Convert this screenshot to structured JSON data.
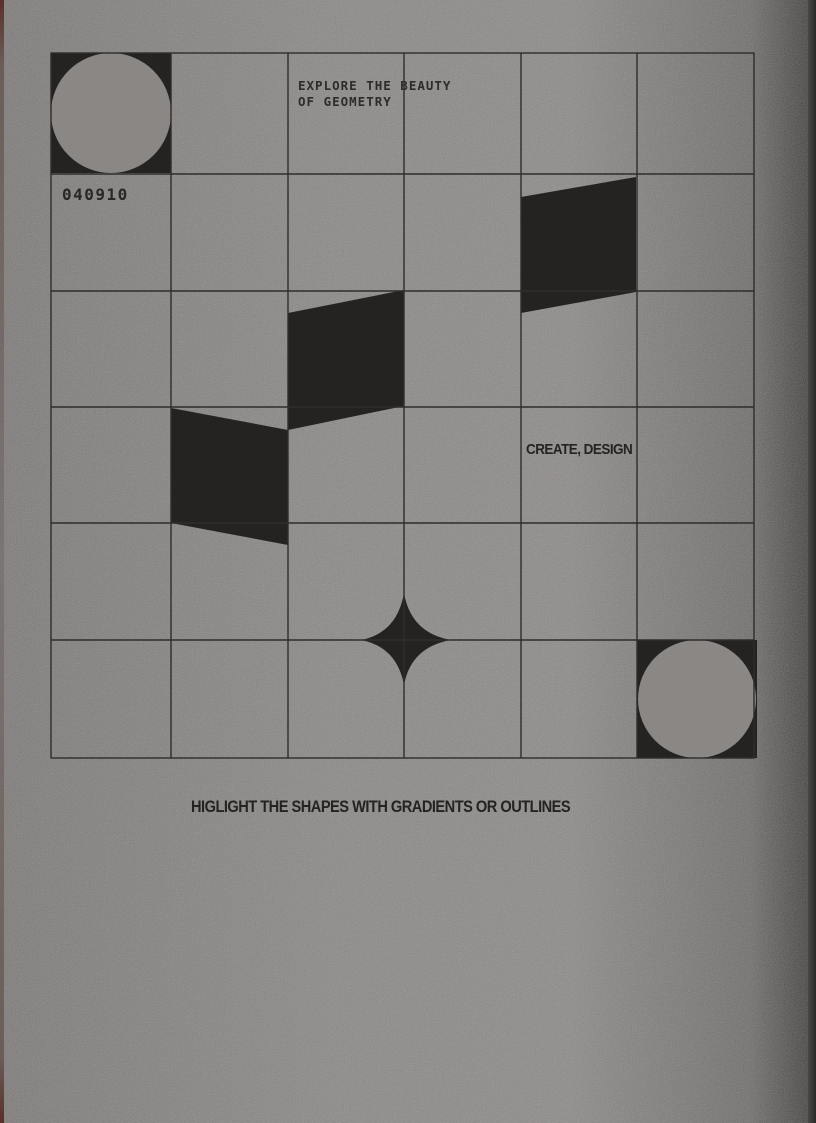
{
  "poster": {
    "headline": "EXPLORE THE BEAUTY\nOF GEOMETRY",
    "code": "040910",
    "side_text": "CREATE, DESIGN",
    "footer_text": "HIGLIGHT THE SHAPES WITH GRADIENTS OR OUTLINES"
  },
  "colors": {
    "background": "#8a8785",
    "ink": "#252322",
    "grid_line": "#2f2d2c"
  },
  "grid": {
    "columns": 6,
    "rows": 6
  }
}
